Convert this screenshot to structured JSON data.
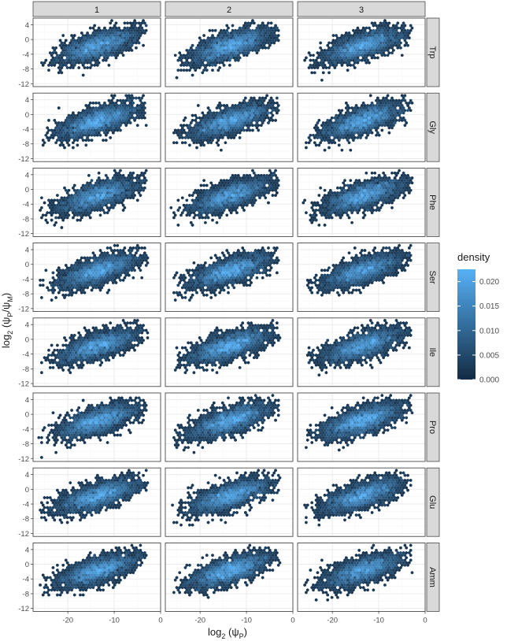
{
  "chart_data": {
    "type": "heatmap",
    "subtype": "faceted hexbin density",
    "title": "",
    "xlabel": {
      "base": "log",
      "sub": "2",
      "expr": "(ψ",
      "expr_sub": "P",
      "close": ")"
    },
    "ylabel": {
      "base": "log",
      "sub": "2",
      "expr": "(ψ",
      "expr_sub": "P",
      "mid": "/ψ",
      "mid_sub": "M",
      "close": ")"
    },
    "column_facets": [
      "1",
      "2",
      "3"
    ],
    "row_facets": [
      "Trp",
      "Gly",
      "Phe",
      "Ser",
      "Ile",
      "Pro",
      "Glu",
      "Amm"
    ],
    "x_ticks": [
      "-20",
      "-10",
      "0"
    ],
    "x_tick_values": [
      -20,
      -10,
      0
    ],
    "y_ticks": [
      "4",
      "0",
      "-4",
      "-8",
      "-12"
    ],
    "y_tick_values": [
      4,
      0,
      -4,
      -8,
      -12
    ],
    "xlim": [
      -27.5,
      0
    ],
    "ylim": [
      -12.8,
      5.8
    ],
    "grid": true,
    "legend": {
      "title": "density",
      "position": "right",
      "labels": [
        "0.020",
        "0.015",
        "0.010",
        "0.005",
        "0.000"
      ],
      "values": [
        0.02,
        0.015,
        0.01,
        0.005,
        0.0
      ],
      "range": [
        0,
        0.0225
      ],
      "color_low": "#132B43",
      "color_high": "#56B1F7"
    },
    "trend": {
      "slope": 0.37,
      "intercept": 3.3,
      "x_center": -13.5,
      "x_spread": 4.2,
      "y_noise": 1.7
    },
    "colors": {
      "panel_border": "#333333",
      "strip_fill": "#d9d9d9",
      "grid_major": "#ebebeb",
      "grid_minor": "#f5f5f5"
    }
  }
}
